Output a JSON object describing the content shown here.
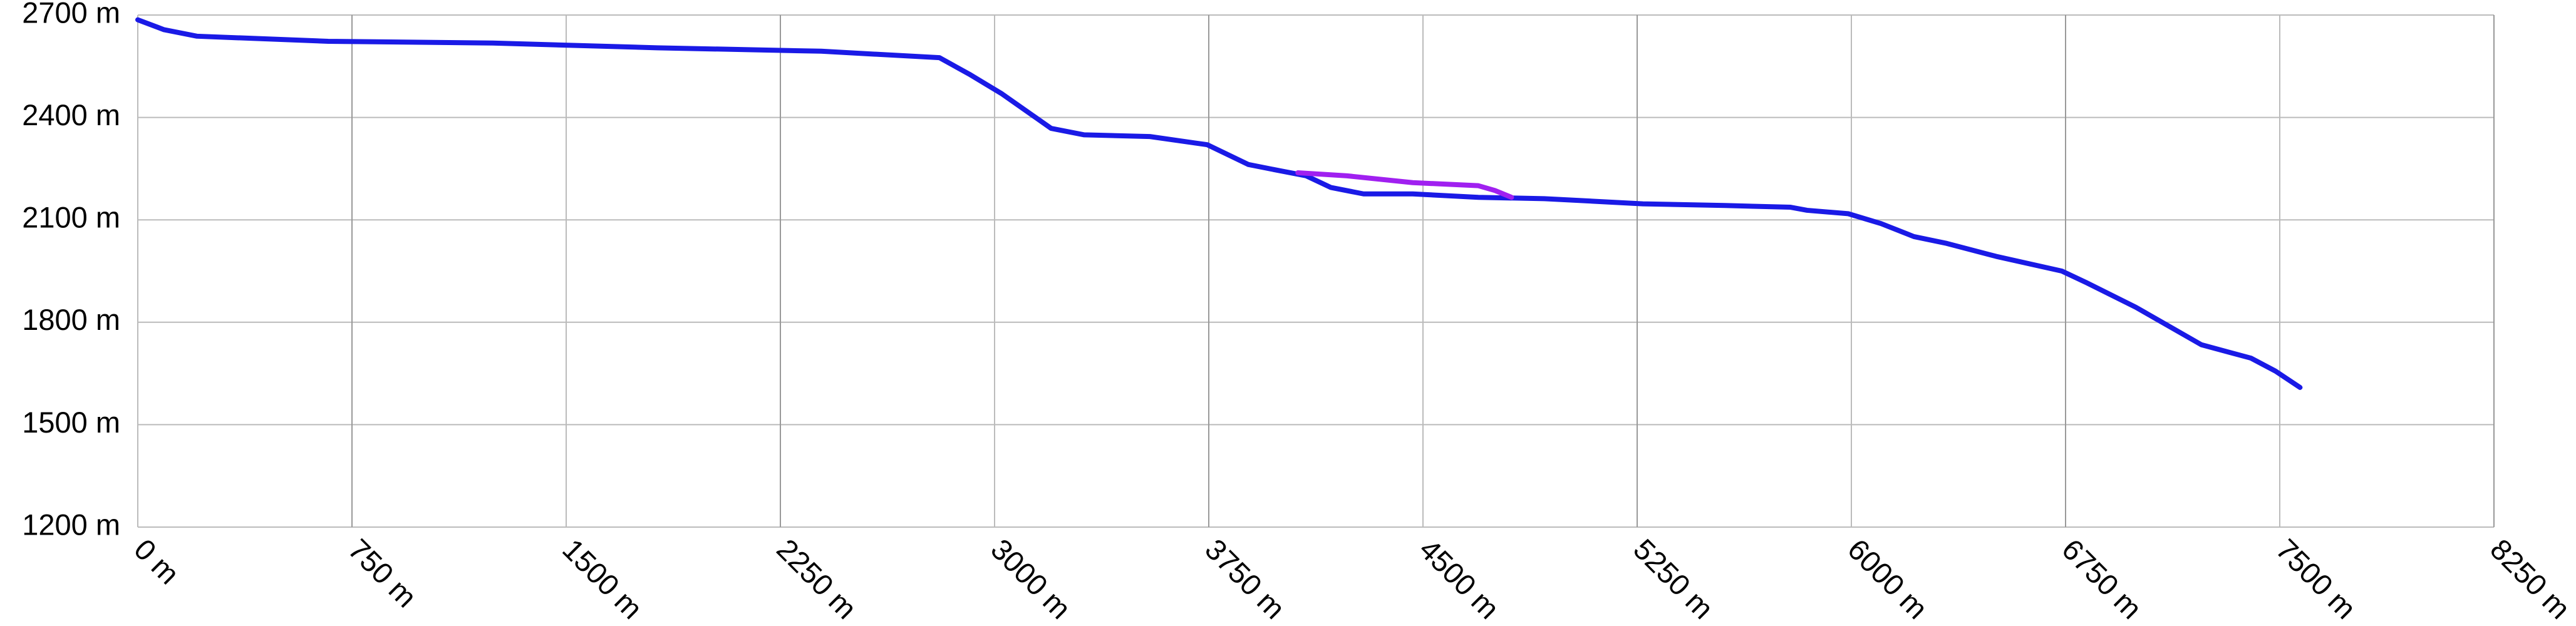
{
  "chart_data": {
    "type": "line",
    "xlim": [
      0,
      8250
    ],
    "xticks": [
      {
        "value": 0,
        "label": "0 m"
      },
      {
        "value": 750,
        "label": "750 m"
      },
      {
        "value": 1500,
        "label": "1500 m"
      },
      {
        "value": 2250,
        "label": "2250 m"
      },
      {
        "value": 3000,
        "label": "3000 m"
      },
      {
        "value": 3750,
        "label": "3750 m"
      },
      {
        "value": 4500,
        "label": "4500 m"
      },
      {
        "value": 5250,
        "label": "5250 m"
      },
      {
        "value": 6000,
        "label": "6000 m"
      },
      {
        "value": 6750,
        "label": "6750 m"
      },
      {
        "value": 7500,
        "label": "7500 m"
      },
      {
        "value": 8250,
        "label": "8250 m"
      }
    ],
    "ylim": [
      1200,
      2700
    ],
    "yticks": [
      {
        "value": 1200,
        "label": "1200 m"
      },
      {
        "value": 1500,
        "label": "1500 m"
      },
      {
        "value": 1800,
        "label": "1800 m"
      },
      {
        "value": 2100,
        "label": "2100 m"
      },
      {
        "value": 2400,
        "label": "2400 m"
      },
      {
        "value": 2700,
        "label": "2700 m"
      }
    ],
    "grid": true,
    "series": [
      {
        "color": "#1a1ae6",
        "x": [
          0,
          92,
          207,
          667,
          1243,
          1818,
          2393,
          2807,
          2911,
          3026,
          3198,
          3314,
          3544,
          3745,
          3889,
          4004,
          4091,
          4177,
          4292,
          4464,
          4694,
          4925,
          5155,
          5270,
          5557,
          5787,
          5845,
          5989,
          6104,
          6219,
          6334,
          6507,
          6737,
          6823,
          6996,
          7226,
          7399,
          7485,
          7571
        ],
        "values": [
          2686,
          2657,
          2638,
          2623,
          2618,
          2604,
          2594,
          2575,
          2527,
          2469,
          2368,
          2349,
          2344,
          2320,
          2262,
          2243,
          2229,
          2195,
          2176,
          2176,
          2166,
          2162,
          2152,
          2147,
          2142,
          2137,
          2128,
          2118,
          2089,
          2051,
          2031,
          1993,
          1950,
          1916,
          1844,
          1734,
          1695,
          1657,
          1609
        ]
      },
      {
        "color": "#a020f0",
        "x": [
          4062,
          4234,
          4464,
          4694,
          4752,
          4810
        ],
        "values": [
          2238,
          2229,
          2209,
          2200,
          2186,
          2166
        ]
      }
    ]
  }
}
